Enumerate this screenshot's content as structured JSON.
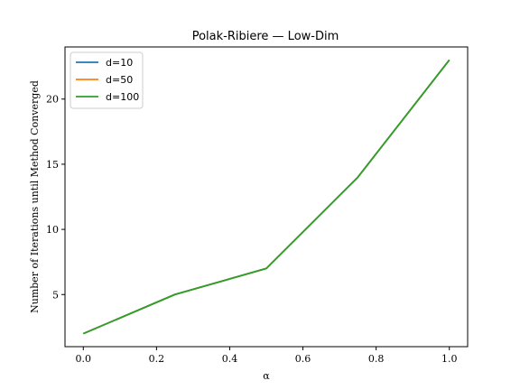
{
  "chart_data": {
    "type": "line",
    "title": "Polak-Ribiere — Low-Dim",
    "xlabel": "α",
    "ylabel": "Number of Iterations until Method Converged",
    "x": [
      0.0,
      0.25,
      0.5,
      0.75,
      1.0
    ],
    "xlim": [
      -0.05,
      1.05
    ],
    "ylim": [
      1.0,
      24.0
    ],
    "xticks": [
      0.0,
      0.2,
      0.4,
      0.6,
      0.8,
      1.0
    ],
    "xtick_labels": [
      "0.0",
      "0.2",
      "0.4",
      "0.6",
      "0.8",
      "1.0"
    ],
    "yticks": [
      5,
      10,
      15,
      20
    ],
    "ytick_labels": [
      "5",
      "10",
      "15",
      "20"
    ],
    "grid": false,
    "legend_position": "top-left",
    "series": [
      {
        "name": "d=10",
        "color": "#1f77b4",
        "values": [
          2,
          5,
          7,
          14,
          23
        ]
      },
      {
        "name": "d=50",
        "color": "#ff7f0e",
        "values": [
          2,
          5,
          7,
          14,
          23
        ]
      },
      {
        "name": "d=100",
        "color": "#2ca02c",
        "values": [
          2,
          5,
          7,
          14,
          23
        ]
      }
    ]
  }
}
